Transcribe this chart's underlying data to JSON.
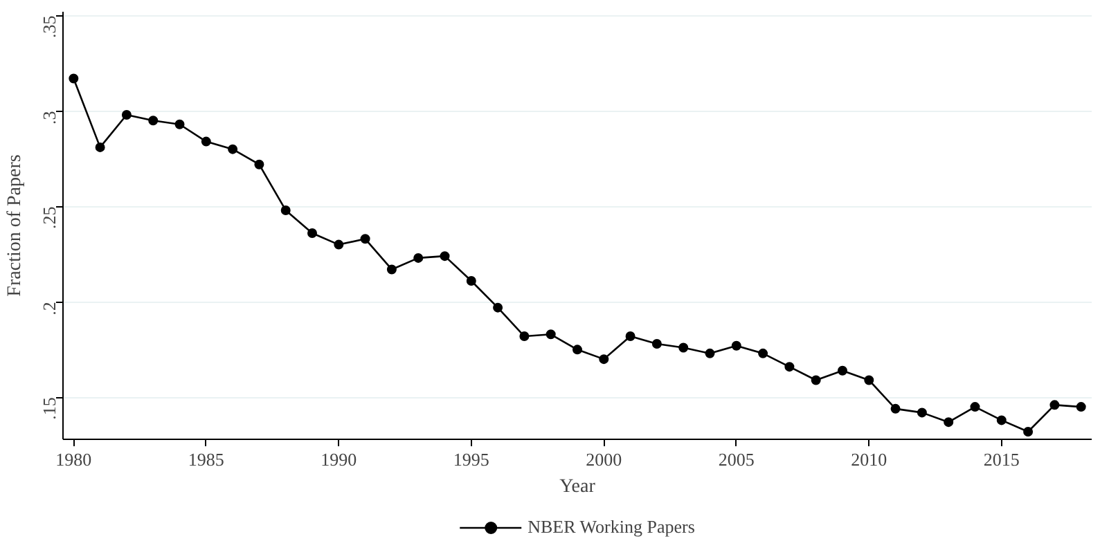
{
  "chart_data": {
    "type": "line",
    "xlabel": "Year",
    "ylabel": "Fraction of Papers",
    "x": [
      1980,
      1981,
      1982,
      1983,
      1984,
      1985,
      1986,
      1987,
      1988,
      1989,
      1990,
      1991,
      1992,
      1993,
      1994,
      1995,
      1996,
      1997,
      1998,
      1999,
      2000,
      2001,
      2002,
      2003,
      2004,
      2005,
      2006,
      2007,
      2008,
      2009,
      2010,
      2011,
      2012,
      2013,
      2014,
      2015,
      2016,
      2017,
      2018
    ],
    "series": [
      {
        "name": "NBER Working Papers",
        "color": "#000000",
        "values": [
          0.317,
          0.281,
          0.298,
          0.295,
          0.293,
          0.284,
          0.28,
          0.272,
          0.248,
          0.236,
          0.23,
          0.233,
          0.217,
          0.223,
          0.224,
          0.211,
          0.197,
          0.182,
          0.183,
          0.175,
          0.17,
          0.182,
          0.178,
          0.176,
          0.173,
          0.177,
          0.173,
          0.166,
          0.159,
          0.164,
          0.159,
          0.144,
          0.142,
          0.137,
          0.145,
          0.138,
          0.132,
          0.146,
          0.145
        ]
      }
    ],
    "xlim": [
      1979.6,
      2018.4
    ],
    "ylim": [
      0.128,
      0.352
    ],
    "xticks": [
      1980,
      1985,
      1990,
      1995,
      2000,
      2005,
      2010,
      2015
    ],
    "yticks": [
      {
        "value": 0.15,
        "label": ".15"
      },
      {
        "value": 0.2,
        "label": ".2"
      },
      {
        "value": 0.25,
        "label": ".25"
      },
      {
        "value": 0.3,
        "label": ".3"
      },
      {
        "value": 0.35,
        "label": ".35"
      }
    ],
    "grid": "y",
    "legend": "bottom",
    "marker": "circle",
    "line_style": "solid"
  }
}
